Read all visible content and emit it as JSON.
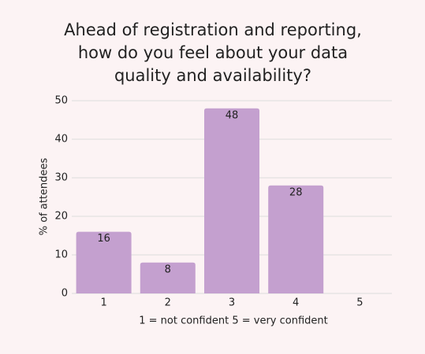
{
  "chart_data": {
    "type": "bar",
    "title": "Ahead of registration and reporting, how do you feel about your data quality and availability?",
    "categories": [
      "1",
      "2",
      "3",
      "4",
      "5"
    ],
    "values": [
      16,
      8,
      48,
      28,
      null
    ],
    "color": "#c4a0cf",
    "ylim": [
      0,
      50
    ],
    "yticks": [
      0,
      10,
      20,
      30,
      40,
      50
    ],
    "ylabel": "% of attendees",
    "xlabel": "1 = not confident 5 = very confident",
    "grid": true
  }
}
